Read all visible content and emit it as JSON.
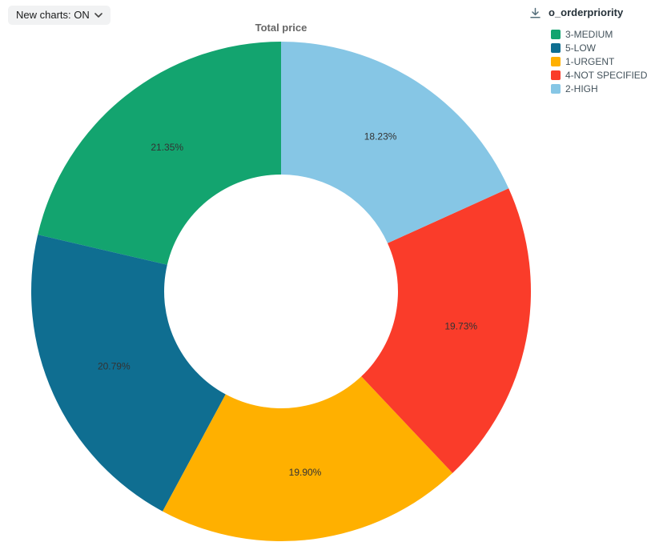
{
  "toolbar": {
    "new_charts_label": "New charts: ON",
    "chevron_icon": "chevron-down-icon"
  },
  "legend": {
    "download_icon": "download-icon"
  },
  "colors": {
    "title_text": "#666666",
    "slice_label_text": "#333333",
    "legend_text": "#44535c",
    "pill_background": "#f1f2f3",
    "icon": "#546e7a"
  },
  "chart_data": {
    "type": "pie",
    "subtype": "donut",
    "title": "Total price",
    "legend_title": "o_orderpriority",
    "legend_position": "top-right",
    "unit": "percent",
    "direction": "counterclockwise-from-top",
    "inner_radius_ratio": 0.47,
    "slices": [
      {
        "name": "3-MEDIUM",
        "value": 21.35,
        "label": "21.35%",
        "color": "#13A46F"
      },
      {
        "name": "5-LOW",
        "value": 20.79,
        "label": "20.79%",
        "color": "#0F6E91"
      },
      {
        "name": "1-URGENT",
        "value": 19.9,
        "label": "19.90%",
        "color": "#FFB000"
      },
      {
        "name": "4-NOT SPECIFIED",
        "value": 19.73,
        "label": "19.73%",
        "color": "#FA3C2A"
      },
      {
        "name": "2-HIGH",
        "value": 18.23,
        "label": "18.23%",
        "color": "#86C6E5"
      }
    ]
  }
}
